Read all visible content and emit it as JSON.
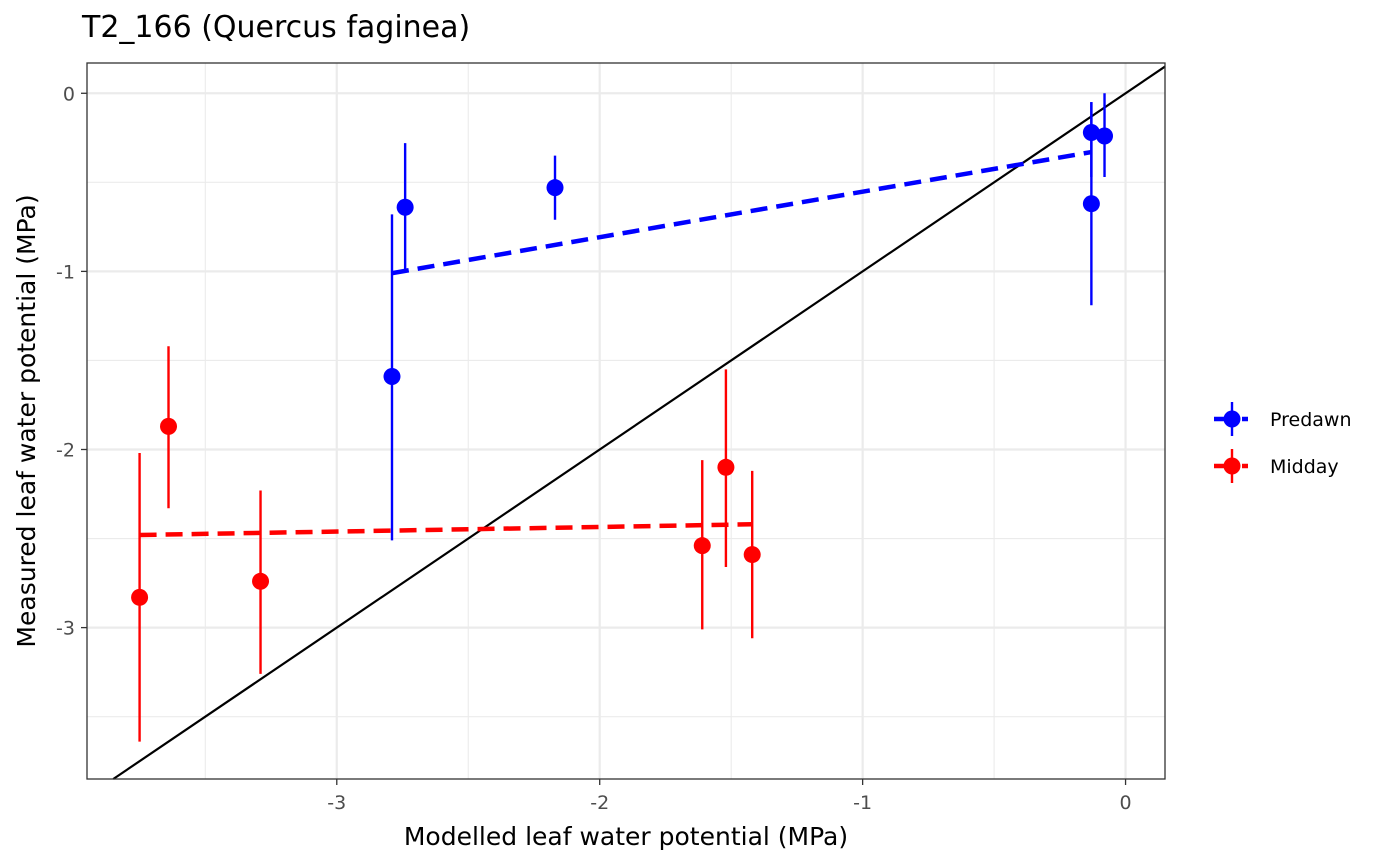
{
  "chart_data": {
    "type": "scatter",
    "title": "T2_166 (Quercus faginea)",
    "xlabel": "Modelled leaf water potential (MPa)",
    "ylabel": "Measured leaf water potential (MPa)",
    "xlim": [
      -3.95,
      0.15
    ],
    "ylim": [
      -3.85,
      0.17
    ],
    "x_ticks": [
      -3,
      -2,
      -1,
      0
    ],
    "y_ticks": [
      0,
      -1,
      -2,
      -3
    ],
    "x_minor": [
      -3.5,
      -2.5,
      -1.5,
      -0.5
    ],
    "y_minor": [
      -0.5,
      -1.5,
      -2.5,
      -3.5
    ],
    "grid": true,
    "legend_position": "right",
    "identity_line": {
      "slope": 1,
      "intercept": 0,
      "color": "#000000"
    },
    "series": [
      {
        "name": "Predawn",
        "color": "#0000FF",
        "points": [
          {
            "x": -2.79,
            "y": -1.59,
            "ymin": -2.51,
            "ymax": -0.68
          },
          {
            "x": -2.74,
            "y": -0.64,
            "ymin": -1.0,
            "ymax": -0.28
          },
          {
            "x": -2.17,
            "y": -0.53,
            "ymin": -0.71,
            "ymax": -0.35
          },
          {
            "x": -0.13,
            "y": -0.22,
            "ymin": -0.47,
            "ymax": -0.05
          },
          {
            "x": -0.13,
            "y": -0.62,
            "ymin": -1.19,
            "ymax": -0.05
          },
          {
            "x": -0.08,
            "y": -0.24,
            "ymin": -0.47,
            "ymax": 0.0
          }
        ],
        "fit": {
          "x": [
            -2.79,
            -0.13
          ],
          "y": [
            -1.01,
            -0.33
          ]
        }
      },
      {
        "name": "Midday",
        "color": "#FF0000",
        "points": [
          {
            "x": -3.75,
            "y": -2.83,
            "ymin": -3.64,
            "ymax": -2.02
          },
          {
            "x": -3.64,
            "y": -1.87,
            "ymin": -2.33,
            "ymax": -1.42
          },
          {
            "x": -3.29,
            "y": -2.74,
            "ymin": -3.26,
            "ymax": -2.23
          },
          {
            "x": -1.61,
            "y": -2.54,
            "ymin": -3.01,
            "ymax": -2.06
          },
          {
            "x": -1.52,
            "y": -2.1,
            "ymin": -2.66,
            "ymax": -1.55
          },
          {
            "x": -1.42,
            "y": -2.59,
            "ymin": -3.06,
            "ymax": -2.12
          }
        ],
        "fit": {
          "x": [
            -3.75,
            -1.42
          ],
          "y": [
            -2.48,
            -2.42
          ]
        }
      }
    ]
  }
}
